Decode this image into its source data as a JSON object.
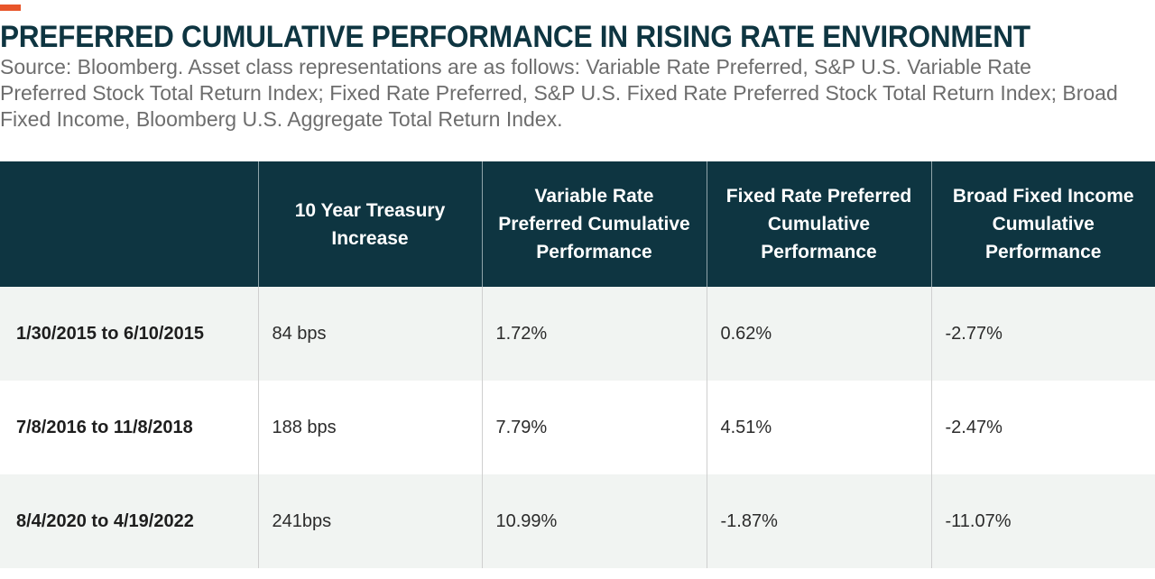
{
  "title": "PREFERRED CUMULATIVE PERFORMANCE IN RISING RATE ENVIRONMENT",
  "source_note": "Source: Bloomberg. Asset class representations are as follows: Variable Rate Preferred, S&P U.S. Variable Rate Preferred Stock Total Return Index; Fixed Rate Preferred, S&P U.S. Fixed Rate Preferred Stock Total Return Index; Broad Fixed Income, Bloomberg U.S. Aggregate Total Return Index.",
  "colors": {
    "accent": "#e8552a",
    "header_bg": "#0e3541",
    "title": "#0e3541",
    "row_shaded": "#f1f4f2"
  },
  "table": {
    "headers": [
      "",
      "10 Year Treasury Increase",
      "Variable Rate Preferred Cumulative Performance",
      "Fixed Rate Preferred Cumulative Performance",
      "Broad Fixed Income Cumulative Performance"
    ],
    "rows": [
      [
        "1/30/2015 to 6/10/2015",
        "84 bps",
        "1.72%",
        "0.62%",
        "-2.77%"
      ],
      [
        "7/8/2016 to 11/8/2018",
        "188 bps",
        "7.79%",
        "4.51%",
        "-2.47%"
      ],
      [
        "8/4/2020 to 4/19/2022",
        "241bps",
        "10.99%",
        "-1.87%",
        "-11.07%"
      ]
    ]
  }
}
